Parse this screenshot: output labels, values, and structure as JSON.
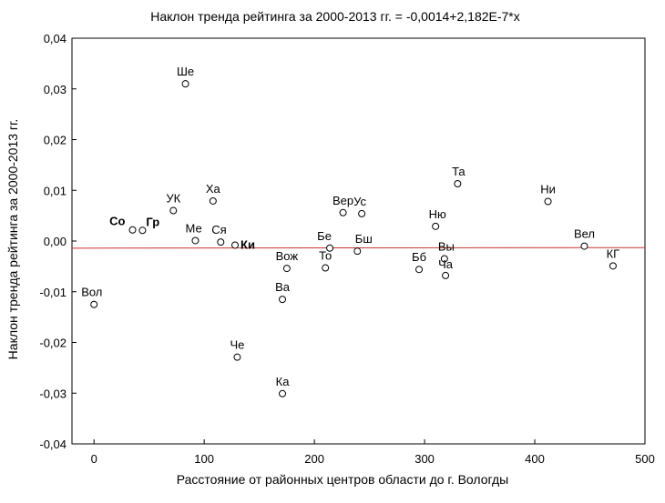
{
  "chart_data": {
    "type": "scatter",
    "title": "Наклон тренда рейтинга за 2000-2013 гг. = -0,0014+2,182E-7*x",
    "xlabel": "Расстояние от районных центров области до г. Вологды",
    "ylabel": "Наклон тренда рейтинга за 2000-2013 гг.",
    "xlim": [
      -20,
      500
    ],
    "ylim": [
      -0.04,
      0.04
    ],
    "x_ticks": [
      0,
      100,
      200,
      300,
      400,
      500
    ],
    "x_tick_labels": [
      "0",
      "100",
      "200",
      "300",
      "400",
      "500"
    ],
    "y_ticks": [
      -0.04,
      -0.03,
      -0.02,
      -0.01,
      0.0,
      0.01,
      0.02,
      0.03,
      0.04
    ],
    "y_tick_labels": [
      "-0,04",
      "-0,03",
      "-0,02",
      "-0,01",
      "0,00",
      "0,01",
      "0,02",
      "0,03",
      "0,04"
    ],
    "grid": false,
    "trend_line": {
      "intercept": -0.0014,
      "slope": 2.182e-07,
      "color": "#cc3333"
    },
    "marker_color": "#000000",
    "points": [
      {
        "label": "Вол",
        "x": 0,
        "y": -0.0125
      },
      {
        "label": "Со",
        "x": 35,
        "y": 0.0022,
        "bold": true
      },
      {
        "label": "Гр",
        "x": 44,
        "y": 0.0021,
        "bold": true
      },
      {
        "label": "УК",
        "x": 72,
        "y": 0.006
      },
      {
        "label": "Ше",
        "x": 83,
        "y": 0.031
      },
      {
        "label": "Ме",
        "x": 92,
        "y": 0.0001
      },
      {
        "label": "Ха",
        "x": 108,
        "y": 0.0079
      },
      {
        "label": "Ся",
        "x": 115,
        "y": -0.0002
      },
      {
        "label": "Ки",
        "x": 128,
        "y": -0.0008,
        "bold": true
      },
      {
        "label": "Че",
        "x": 130,
        "y": -0.0229
      },
      {
        "label": "Ва",
        "x": 171,
        "y": -0.0115
      },
      {
        "label": "Ка",
        "x": 171,
        "y": -0.0301
      },
      {
        "label": "Вож",
        "x": 175,
        "y": -0.0054
      },
      {
        "label": "То",
        "x": 210,
        "y": -0.0053
      },
      {
        "label": "Бе",
        "x": 214,
        "y": -0.0014
      },
      {
        "label": "Вер",
        "x": 226,
        "y": 0.0056
      },
      {
        "label": "Бш",
        "x": 239,
        "y": -0.002
      },
      {
        "label": "Ус",
        "x": 243,
        "y": 0.0054
      },
      {
        "label": "Бб",
        "x": 295,
        "y": -0.0056
      },
      {
        "label": "Ню",
        "x": 310,
        "y": 0.0029
      },
      {
        "label": "Вы",
        "x": 318,
        "y": -0.0035
      },
      {
        "label": "Ча",
        "x": 319,
        "y": -0.0068
      },
      {
        "label": "Та",
        "x": 330,
        "y": 0.0113
      },
      {
        "label": "Ни",
        "x": 412,
        "y": 0.0078
      },
      {
        "label": "Вел",
        "x": 445,
        "y": -0.001
      },
      {
        "label": "КГ",
        "x": 471,
        "y": -0.0049
      }
    ]
  }
}
